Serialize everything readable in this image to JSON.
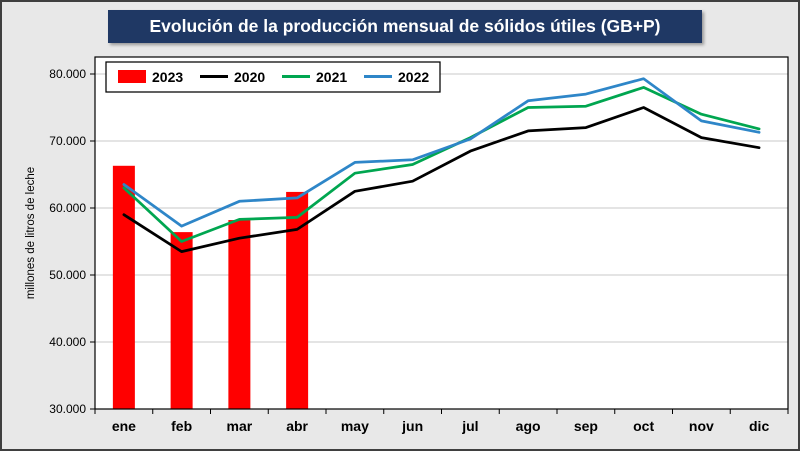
{
  "title": "Evolución de la producción mensual de sólidos útiles (GB+P)",
  "colors": {
    "title_bar_bg": "#1F3864",
    "title_text": "#FFFFFF",
    "page_bg": "#E8E8E8",
    "plot_bg": "#FFFFFF",
    "plot_border": "#000000",
    "gridline": "#C9C9C9",
    "bar_2023": "#FF0000",
    "line_2020": "#000000",
    "line_2021": "#00A650",
    "line_2022": "#2E86C8"
  },
  "chart_data": {
    "type": "bar+line",
    "title": "Evolución de la producción mensual de sólidos útiles (GB+P)",
    "xlabel": "",
    "ylabel": "millones de litros de leche",
    "ylim": [
      30000,
      80000
    ],
    "ytick_step": 10000,
    "ytick_labels": [
      "30.000",
      "40.000",
      "50.000",
      "60.000",
      "70.000",
      "80.000"
    ],
    "grid": true,
    "legend_position": "top-left",
    "categories": [
      "ene",
      "feb",
      "mar",
      "abr",
      "may",
      "jun",
      "jul",
      "ago",
      "sep",
      "oct",
      "nov",
      "dic"
    ],
    "series": [
      {
        "name": "2023",
        "type": "bar",
        "color": "#FF0000",
        "values": [
          66300,
          56400,
          58200,
          62400,
          null,
          null,
          null,
          null,
          null,
          null,
          null,
          null
        ]
      },
      {
        "name": "2020",
        "type": "line",
        "color": "#000000",
        "values": [
          59000,
          53500,
          55500,
          56800,
          62500,
          64000,
          68500,
          71500,
          72000,
          75000,
          70500,
          69000
        ]
      },
      {
        "name": "2021",
        "type": "line",
        "color": "#00A650",
        "values": [
          63000,
          55000,
          58300,
          58600,
          65200,
          66500,
          70500,
          75000,
          75200,
          78000,
          74000,
          71800
        ]
      },
      {
        "name": "2022",
        "type": "line",
        "color": "#2E86C8",
        "values": [
          63500,
          57300,
          61000,
          61500,
          66800,
          67200,
          70300,
          76000,
          77000,
          79300,
          73000,
          71300
        ]
      }
    ]
  }
}
